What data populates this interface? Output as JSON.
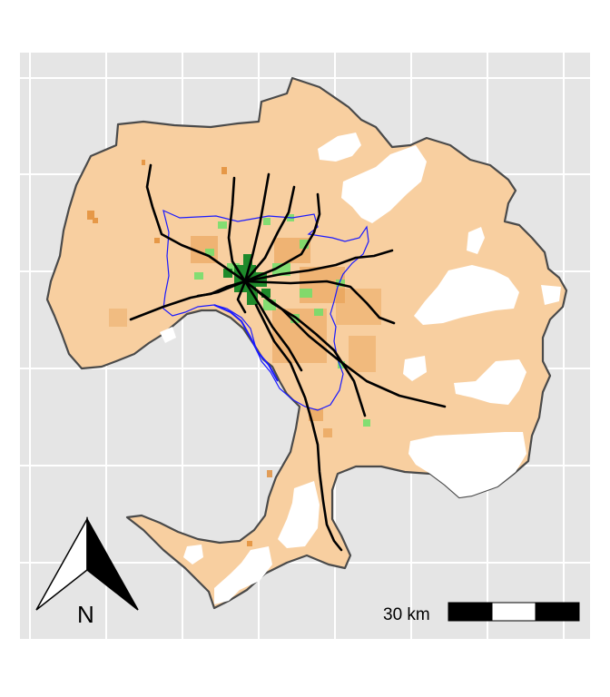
{
  "map": {
    "background_color": "#e5e5e5",
    "grid_color": "#ffffff",
    "land_fill": "#f8cfa0",
    "land_outline": "#4a4a4a",
    "metro_boundary_color": "#1a1aff",
    "rail_color": "#000000",
    "density_high_color": "#1f8a2b",
    "density_mid_color": "#6fe06a",
    "density_low_color": "#e0862a",
    "non_urban_color": "#ffffff",
    "grid": true
  },
  "north_arrow": {
    "label": "N",
    "icon": "north-arrow-icon"
  },
  "scale_bar": {
    "label": "30 km",
    "segments": 3
  }
}
